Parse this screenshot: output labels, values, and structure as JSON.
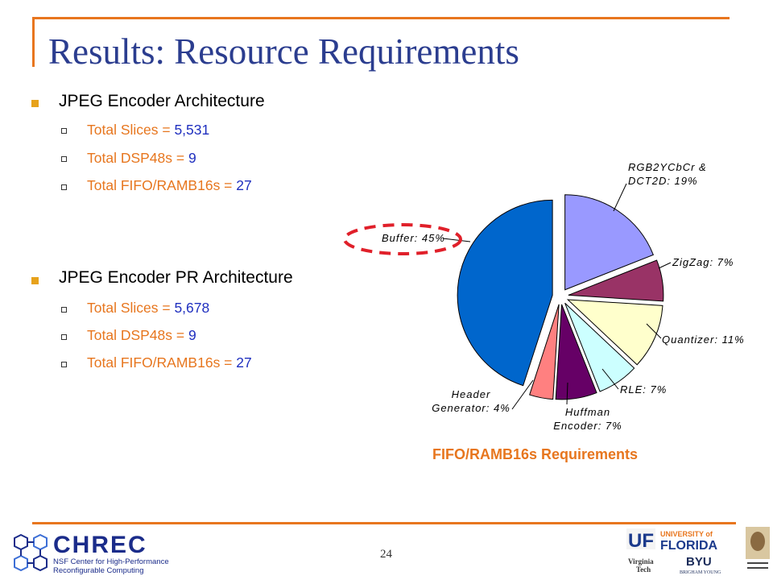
{
  "slide": {
    "title": "Results: Resource Requirements",
    "page_number": "24"
  },
  "sections": [
    {
      "heading": "JPEG Encoder Architecture",
      "items": [
        {
          "label": "Total Slices = ",
          "value": "5,531"
        },
        {
          "label": "Total DSP48s = ",
          "value": "9"
        },
        {
          "label": "Total FIFO/RAMB16s = ",
          "value": "27"
        }
      ]
    },
    {
      "heading": "JPEG Encoder PR Architecture",
      "items": [
        {
          "label": "Total Slices = ",
          "value": "5,678"
        },
        {
          "label": "Total DSP48s = ",
          "value": "9"
        },
        {
          "label": "Total FIFO/RAMB16s = ",
          "value": "27"
        }
      ]
    }
  ],
  "chart_data": {
    "type": "pie",
    "title": "FIFO/RAMB16s Requirements",
    "slices": [
      {
        "label": "RGB2YCbCr & DCT2D: 19%",
        "name": "RGB2YCbCr & DCT2D",
        "value": 19,
        "color": "#9999ff"
      },
      {
        "label": "ZigZag: 7%",
        "name": "ZigZag",
        "value": 7,
        "color": "#993366"
      },
      {
        "label": "Quantizer: 11%",
        "name": "Quantizer",
        "value": 11,
        "color": "#ffffcc"
      },
      {
        "label": "RLE: 7%",
        "name": "RLE",
        "value": 7,
        "color": "#ccffff"
      },
      {
        "label": "Huffman Encoder: 7%",
        "name": "Huffman Encoder",
        "value": 7,
        "color": "#660066"
      },
      {
        "label": "Header Generator: 4%",
        "name": "Header Generator",
        "value": 4,
        "color": "#ff8080"
      },
      {
        "label": "Buffer: 45%",
        "name": "Buffer",
        "value": 45,
        "color": "#0066cc"
      }
    ],
    "highlighted_slice": "Buffer"
  },
  "footer": {
    "org_name": "CHREC",
    "org_sub_line1": "NSF Center for High-Performance",
    "org_sub_line2": "Reconfigurable Computing",
    "partner_logos": [
      "UF UNIVERSITY of FLORIDA",
      "Virginia Tech",
      "BYU BRIGHAM YOUNG UNIVERSITY",
      "GEORGE WASHINGTON UNIVERSITY"
    ]
  },
  "colors": {
    "title": "#2b3d8f",
    "accent_orange": "#e7761e",
    "value_blue": "#1f2fbf",
    "highlight_red": "#e0202a"
  }
}
